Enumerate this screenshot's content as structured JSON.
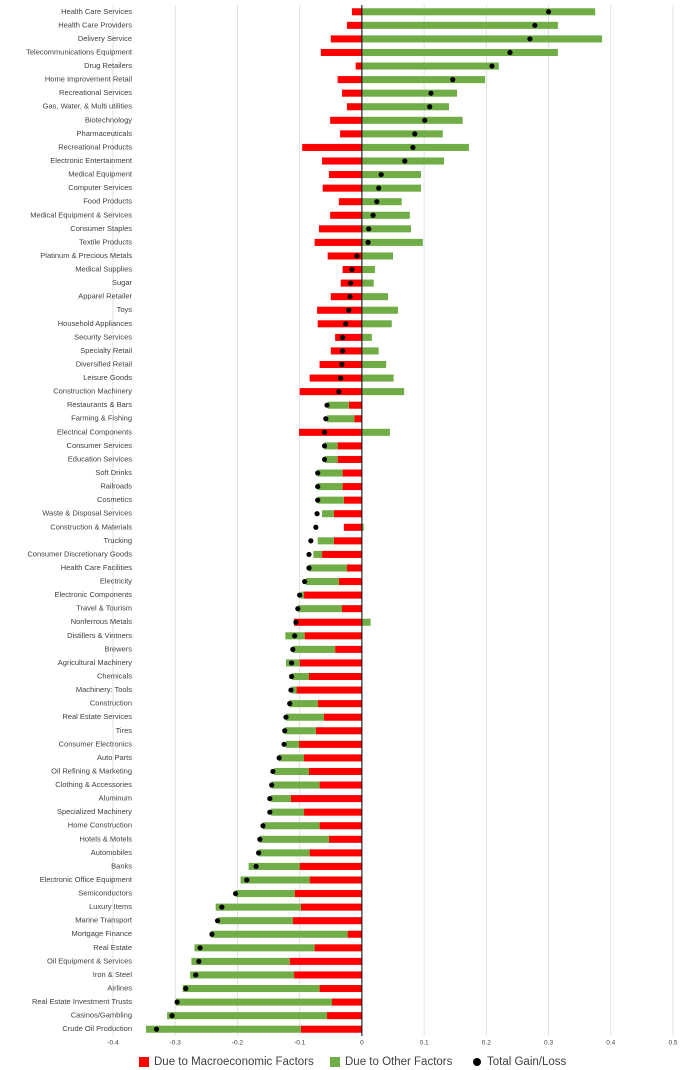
{
  "chart_data": {
    "type": "bar",
    "orientation": "horizontal",
    "stacked": true,
    "categories": [
      "Health Care Services",
      "Health Care Providers",
      "Delivery Service",
      "Telecommunications Equipment",
      "Drug Retailers",
      "Home Improvement  Retail",
      "Recreational Services",
      "Gas, Water, & Multi utilities",
      "Biotechnology",
      "Pharmaceuticals",
      "Recreational Products",
      "Electronic Entertainment",
      "Medical Equipment",
      "Computer Services",
      "Food Products",
      "Medical Equipment &  Services",
      "Consumer Staples",
      "Textile Products",
      "Platinum & Precious Metals",
      "Medical Supplies",
      "Sugar",
      "Apparel Retailer",
      "Toys",
      "Household Appliances",
      "Security Services",
      "Specialty Retail",
      "Diversified Retail",
      "Leisure Goods",
      "Construction Machinery",
      "Restaurants & Bars",
      "Farming & Fishing",
      "Electrical Components",
      "Consumer Services",
      "Education Services",
      "Soft Drinks",
      "Railroads",
      "Cosmetics",
      "Waste & Disposal  Services",
      "Construction &  Materials",
      "Trucking",
      "Consumer Discretionary Goods",
      "Health Care Facilities",
      "Electricity",
      "Electronic Components",
      "Travel & Tourism",
      "Nonferrous Metals",
      "Distillers & Vintners",
      "Brewers",
      "Agricultural  Machinery",
      "Chemicals",
      "Machinery: Tools",
      "Construction",
      "Real Estate Services",
      "Tires",
      "Consumer Electronics",
      "Auto Parts",
      "Oil Refining & Marketing",
      "Clothing &  Accessories",
      "Aluminum",
      "Specialized Machinery",
      "Home Construction",
      "Hotels & Motels",
      "Automobiles",
      "Banks",
      "Electronic Office  Equipment",
      "Semiconductors",
      "Luxury Items",
      "Marine Transport",
      "Mortgage Finance",
      "Real Estate",
      "Oil Equipment & Services",
      "Iron & Steel",
      "Airlines",
      "Real Estate Investment Trusts",
      "Casinos/Gambling",
      "Crude Oil Production"
    ],
    "series": [
      {
        "name": "Due to Macroeconomic Factors",
        "color": "#ff0000",
        "values": [
          -0.016,
          -0.024,
          -0.05,
          -0.066,
          -0.01,
          -0.039,
          -0.032,
          -0.024,
          -0.051,
          -0.035,
          -0.096,
          -0.064,
          -0.053,
          -0.063,
          -0.037,
          -0.051,
          -0.069,
          -0.076,
          -0.055,
          -0.031,
          -0.034,
          -0.05,
          -0.072,
          -0.071,
          -0.043,
          -0.05,
          -0.068,
          -0.084,
          -0.1,
          -0.021,
          -0.012,
          -0.101,
          -0.039,
          -0.039,
          -0.031,
          -0.031,
          -0.029,
          -0.045,
          -0.029,
          -0.045,
          -0.064,
          -0.024,
          -0.037,
          -0.093,
          -0.032,
          -0.109,
          -0.092,
          -0.043,
          -0.1,
          -0.085,
          -0.105,
          -0.071,
          -0.061,
          -0.074,
          -0.101,
          -0.093,
          -0.085,
          -0.068,
          -0.114,
          -0.093,
          -0.068,
          -0.053,
          -0.084,
          -0.1,
          -0.084,
          -0.108,
          -0.098,
          -0.111,
          -0.023,
          -0.076,
          -0.116,
          -0.109,
          -0.068,
          -0.048,
          -0.056,
          -0.098
        ]
      },
      {
        "name": "Due to Other Factors",
        "color": "#70ad47",
        "values": [
          0.375,
          0.315,
          0.386,
          0.315,
          0.22,
          0.198,
          0.153,
          0.14,
          0.162,
          0.13,
          0.172,
          0.132,
          0.095,
          0.095,
          0.064,
          0.077,
          0.079,
          0.098,
          0.05,
          0.021,
          0.019,
          0.042,
          0.058,
          0.048,
          0.016,
          0.027,
          0.039,
          0.051,
          0.068,
          -0.034,
          -0.044,
          0.045,
          -0.021,
          -0.021,
          -0.04,
          -0.04,
          -0.042,
          -0.019,
          0.003,
          -0.026,
          -0.014,
          -0.061,
          -0.053,
          -0.005,
          -0.071,
          0.014,
          -0.031,
          -0.068,
          -0.022,
          -0.027,
          -0.008,
          -0.045,
          -0.061,
          -0.05,
          -0.021,
          -0.04,
          -0.056,
          -0.077,
          -0.032,
          -0.053,
          -0.091,
          -0.111,
          -0.082,
          -0.082,
          -0.111,
          -0.095,
          -0.137,
          -0.12,
          -0.219,
          -0.193,
          -0.158,
          -0.167,
          -0.22,
          -0.251,
          -0.257,
          -0.249
        ]
      },
      {
        "name": "Total Gain/Loss",
        "color": "#000000",
        "type": "scatter",
        "values": [
          0.3,
          0.278,
          0.27,
          0.238,
          0.209,
          0.146,
          0.111,
          0.109,
          0.101,
          0.085,
          0.082,
          0.069,
          0.031,
          0.027,
          0.024,
          0.018,
          0.011,
          0.01,
          -0.008,
          -0.016,
          -0.018,
          -0.019,
          -0.021,
          -0.026,
          -0.031,
          -0.031,
          -0.032,
          -0.034,
          -0.037,
          -0.056,
          -0.058,
          -0.06,
          -0.06,
          -0.06,
          -0.071,
          -0.071,
          -0.071,
          -0.072,
          -0.074,
          -0.082,
          -0.085,
          -0.085,
          -0.092,
          -0.1,
          -0.103,
          -0.106,
          -0.108,
          -0.111,
          -0.113,
          -0.113,
          -0.114,
          -0.116,
          -0.122,
          -0.124,
          -0.125,
          -0.133,
          -0.143,
          -0.145,
          -0.148,
          -0.148,
          -0.159,
          -0.164,
          -0.166,
          -0.17,
          -0.185,
          -0.203,
          -0.225,
          -0.232,
          -0.241,
          -0.26,
          -0.262,
          -0.267,
          -0.283,
          -0.297,
          -0.305,
          -0.33
        ]
      }
    ],
    "xlim": [
      -0.4,
      0.5
    ],
    "xticks": [
      -0.4,
      -0.3,
      -0.2,
      -0.1,
      0,
      0.1,
      0.2,
      0.3,
      0.4,
      0.5
    ],
    "grid": true,
    "legend": "bottom"
  }
}
